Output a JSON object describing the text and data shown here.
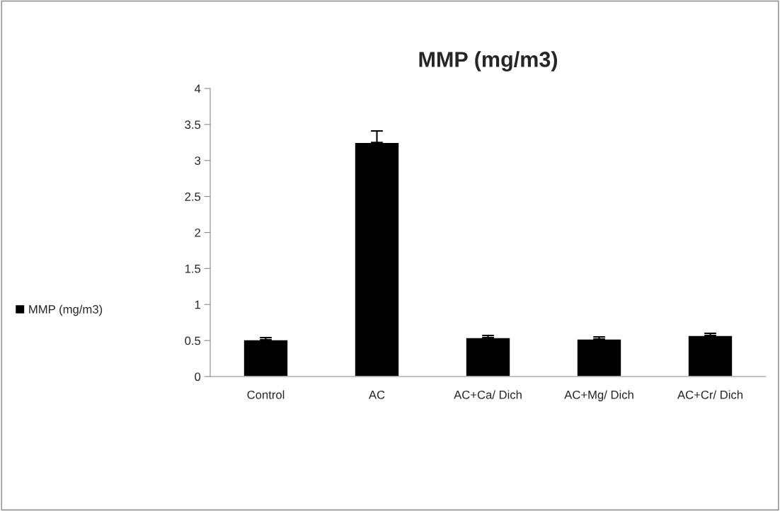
{
  "chart_data": {
    "type": "bar",
    "title": "MMP (mg/m3)",
    "categories": [
      "Control",
      "AC",
      "AC+Ca/ Dich",
      "AC+Mg/ Dich",
      "AC+Cr/ Dich"
    ],
    "series": [
      {
        "name": "MMP (mg/m3)",
        "color": "#000000",
        "values": [
          0.51,
          3.25,
          0.54,
          0.52,
          0.57
        ],
        "errors": [
          [
            0.51,
            0.54
          ],
          [
            3.25,
            3.41
          ],
          [
            0.54,
            0.57
          ],
          [
            0.52,
            0.55
          ],
          [
            0.57,
            0.6
          ]
        ]
      }
    ],
    "ylim": [
      0,
      4
    ],
    "yticks": [
      0,
      0.5,
      1,
      1.5,
      2,
      2.5,
      3,
      3.5,
      4
    ],
    "grid": false,
    "legend": "left"
  }
}
